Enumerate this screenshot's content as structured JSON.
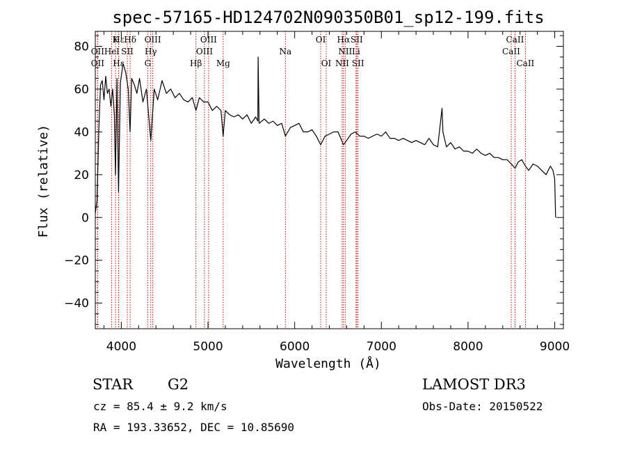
{
  "chart_data": {
    "type": "line",
    "title": "spec-57165-HD124702N090350B01_sp12-199.fits",
    "xlabel": "Wavelength (Å)",
    "ylabel": "Flux (relative)",
    "xlim": [
      3700,
      9100
    ],
    "ylim": [
      -52,
      87
    ],
    "x_ticks": [
      4000,
      5000,
      6000,
      7000,
      8000,
      9000
    ],
    "x_tick_labels": [
      "4000",
      "5000",
      "6000",
      "7000",
      "8000",
      "9000"
    ],
    "y_ticks": [
      -40,
      -20,
      0,
      20,
      40,
      60,
      80
    ],
    "y_tick_labels": [
      "−40",
      "−20",
      "0",
      "20",
      "40",
      "60",
      "80"
    ],
    "series": [
      {
        "name": "flux",
        "x": [
          3700,
          3720,
          3740,
          3760,
          3780,
          3800,
          3820,
          3840,
          3860,
          3880,
          3900,
          3920,
          3933,
          3950,
          3968,
          3990,
          4020,
          4050,
          4080,
          4101,
          4120,
          4150,
          4180,
          4210,
          4250,
          4290,
          4340,
          4380,
          4420,
          4470,
          4520,
          4570,
          4620,
          4670,
          4720,
          4770,
          4820,
          4861,
          4900,
          4950,
          5000,
          5050,
          5100,
          5150,
          5175,
          5200,
          5250,
          5300,
          5350,
          5400,
          5450,
          5500,
          5550,
          5575,
          5578,
          5590,
          5650,
          5700,
          5750,
          5800,
          5850,
          5893,
          5950,
          6000,
          6050,
          6100,
          6150,
          6200,
          6250,
          6300,
          6350,
          6400,
          6450,
          6500,
          6563,
          6600,
          6650,
          6700,
          6750,
          6800,
          6850,
          6900,
          6950,
          7000,
          7050,
          7100,
          7150,
          7200,
          7250,
          7300,
          7350,
          7400,
          7450,
          7500,
          7550,
          7600,
          7650,
          7700,
          7710,
          7750,
          7800,
          7850,
          7900,
          7950,
          8000,
          8050,
          8100,
          8150,
          8200,
          8250,
          8300,
          8350,
          8400,
          8450,
          8500,
          8542,
          8580,
          8620,
          8662,
          8700,
          8750,
          8800,
          8850,
          8900,
          8950,
          8980,
          9000,
          9010
        ],
        "values": [
          2,
          8,
          40,
          62,
          64,
          55,
          66,
          58,
          60,
          52,
          60,
          48,
          20,
          65,
          12,
          63,
          72,
          68,
          60,
          40,
          65,
          62,
          58,
          65,
          54,
          60,
          36,
          60,
          55,
          64,
          58,
          60,
          56,
          58,
          55,
          54,
          56,
          50,
          56,
          54,
          54,
          50,
          52,
          50,
          38,
          50,
          48,
          47,
          48,
          46,
          48,
          44,
          47,
          45,
          75,
          44,
          46,
          44,
          45,
          43,
          44,
          38,
          42,
          43,
          44,
          40,
          40,
          41,
          38,
          34,
          38,
          39,
          40,
          40,
          34,
          36,
          39,
          40,
          38,
          38,
          37,
          38,
          39,
          38,
          40,
          37,
          37,
          36,
          37,
          36,
          35,
          36,
          35,
          34,
          37,
          34,
          33,
          51,
          40,
          33,
          35,
          32,
          33,
          31,
          31,
          30,
          32,
          30,
          29,
          30,
          28,
          28,
          27,
          27,
          25,
          23,
          26,
          27,
          24,
          22,
          25,
          24,
          22,
          20,
          24,
          22,
          18,
          0
        ]
      }
    ],
    "spectral_lines": [
      {
        "label": "Hδ",
        "wavelength": 4102,
        "row": 1
      },
      {
        "label": "OII",
        "wavelength": 3727,
        "row": 2
      },
      {
        "label": "OII",
        "wavelength": 3727,
        "row": 3
      },
      {
        "label": "K",
        "wavelength": 3934,
        "row": 1
      },
      {
        "label": "Hε",
        "wavelength": 3970,
        "row": 1
      },
      {
        "label": "Hel",
        "wavelength": 3889,
        "row": 2
      },
      {
        "label": "Hε",
        "wavelength": 3970,
        "row": 3
      },
      {
        "label": "SII",
        "wavelength": 4069,
        "row": 2
      },
      {
        "label": "OIII",
        "wavelength": 4363,
        "row": 1
      },
      {
        "label": "Hγ",
        "wavelength": 4340,
        "row": 2
      },
      {
        "label": "G",
        "wavelength": 4305,
        "row": 3
      },
      {
        "label": "OIII",
        "wavelength": 5007,
        "row": 1
      },
      {
        "label": "OIII",
        "wavelength": 4959,
        "row": 2
      },
      {
        "label": "Hβ",
        "wavelength": 4861,
        "row": 3
      },
      {
        "label": "Mg",
        "wavelength": 5175,
        "row": 3
      },
      {
        "label": "Na",
        "wavelength": 5893,
        "row": 2
      },
      {
        "label": "OI",
        "wavelength": 6300,
        "row": 1
      },
      {
        "label": "OI",
        "wavelength": 6364,
        "row": 3
      },
      {
        "label": "Hα",
        "wavelength": 6563,
        "row": 1
      },
      {
        "label": "SII",
        "wavelength": 6716,
        "row": 1
      },
      {
        "label": "NII",
        "wavelength": 6583,
        "row": 2
      },
      {
        "label": "Li",
        "wavelength": 6708,
        "row": 2
      },
      {
        "label": "NII",
        "wavelength": 6548,
        "row": 3
      },
      {
        "label": "SII",
        "wavelength": 6731,
        "row": 3
      },
      {
        "label": "CaII",
        "wavelength": 8542,
        "row": 1
      },
      {
        "label": "CaII",
        "wavelength": 8498,
        "row": 2
      },
      {
        "label": "CaII",
        "wavelength": 8662,
        "row": 3
      }
    ]
  },
  "info": {
    "object_class": "STAR",
    "subclass": "G2",
    "survey": "LAMOST DR3",
    "redshift_text": "cz = 85.4 ± 9.2 km/s",
    "obs_date_text": "Obs-Date: 20150522",
    "coords_text": "RA = 193.33652, DEC =  10.85690"
  },
  "colors": {
    "spectrum": "#000000",
    "line_marker": "#cc0000"
  }
}
